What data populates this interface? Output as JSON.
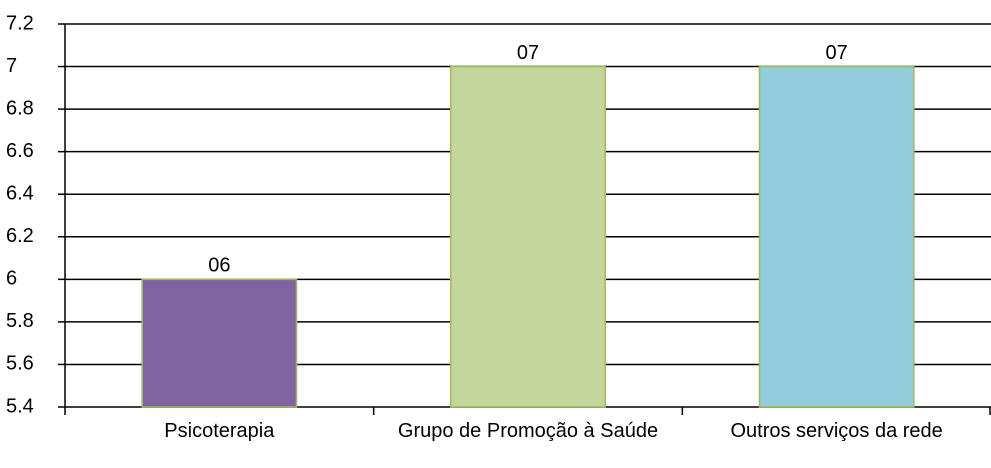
{
  "chart_data": {
    "type": "bar",
    "categories": [
      "Psicoterapia",
      "Grupo de Promoção à Saúde",
      "Outros serviços da rede"
    ],
    "values": [
      6,
      7,
      7
    ],
    "value_labels": [
      "06",
      "07",
      "07"
    ],
    "colors": [
      "#8064a2",
      "#c3d69b",
      "#93cddd"
    ],
    "ylim": [
      5.4,
      7.2
    ],
    "yticks": [
      5.4,
      5.6,
      5.8,
      6,
      6.2,
      6.4,
      6.6,
      6.8,
      7,
      7.2
    ],
    "grid": true
  }
}
